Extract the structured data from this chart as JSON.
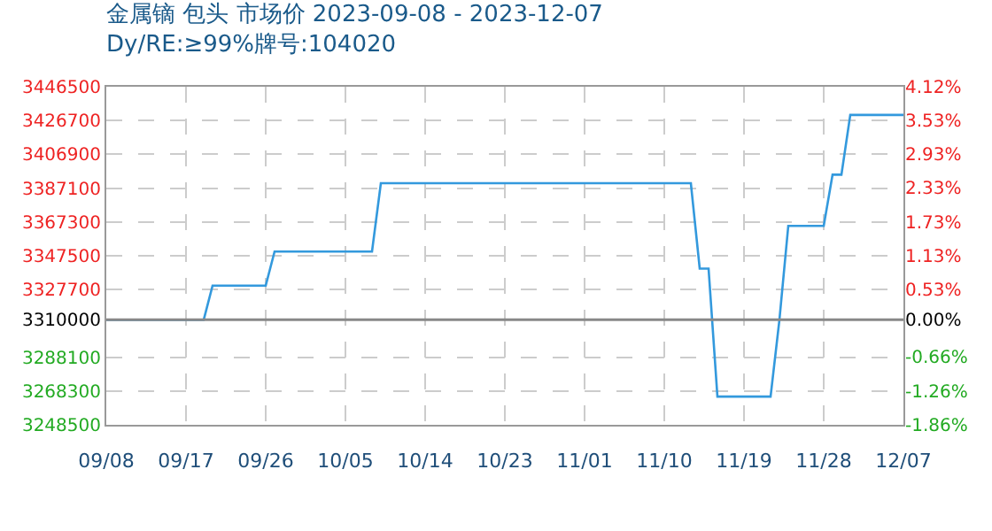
{
  "chart_data": {
    "type": "line",
    "title": "金属镝 包头 市场价 2023-09-08 - 2023-12-07",
    "subtitle": "Dy/RE:≥99%牌号:104020",
    "x": [
      "2023-09-08",
      "2023-09-19",
      "2023-09-20",
      "2023-09-26",
      "2023-09-27",
      "2023-10-08",
      "2023-10-09",
      "2023-11-13",
      "2023-11-14",
      "2023-11-15",
      "2023-11-16",
      "2023-11-22",
      "2023-11-23",
      "2023-11-24",
      "2023-11-28",
      "2023-11-29",
      "2023-11-30",
      "2023-12-01",
      "2023-12-07"
    ],
    "series": [
      {
        "color": "#3399dd",
        "values": [
          3310000,
          3310000,
          3330000,
          3330000,
          3350000,
          3350000,
          3390000,
          3390000,
          3340000,
          3340000,
          3265000,
          3265000,
          3310000,
          3365000,
          3365000,
          3395000,
          3395000,
          3430000,
          3430000
        ]
      }
    ],
    "xlim": [
      "2023-09-08",
      "2023-12-07"
    ],
    "xticks": [
      {
        "value": "2023-09-08",
        "label": "09/08"
      },
      {
        "value": "2023-09-17",
        "label": "09/17"
      },
      {
        "value": "2023-09-26",
        "label": "09/26"
      },
      {
        "value": "2023-10-05",
        "label": "10/05"
      },
      {
        "value": "2023-10-14",
        "label": "10/14"
      },
      {
        "value": "2023-10-23",
        "label": "10/23"
      },
      {
        "value": "2023-11-01",
        "label": "11/01"
      },
      {
        "value": "2023-11-10",
        "label": "11/10"
      },
      {
        "value": "2023-11-19",
        "label": "11/19"
      },
      {
        "value": "2023-11-28",
        "label": "11/28"
      },
      {
        "value": "2023-12-07",
        "label": "12/07"
      }
    ],
    "ylim": [
      3248500,
      3446500
    ],
    "yticks": [
      3446500,
      3426700,
      3406900,
      3387100,
      3367300,
      3347500,
      3327700,
      3310000,
      3288100,
      3268300,
      3248500
    ],
    "y2lim": [
      -1.86,
      4.12
    ],
    "y2ticks": [
      {
        "value": 4.12,
        "label": "4.12%"
      },
      {
        "value": 3.53,
        "label": "3.53%"
      },
      {
        "value": 2.93,
        "label": "2.93%"
      },
      {
        "value": 2.33,
        "label": "2.33%"
      },
      {
        "value": 1.73,
        "label": "1.73%"
      },
      {
        "value": 1.13,
        "label": "1.13%"
      },
      {
        "value": 0.53,
        "label": "0.53%"
      },
      {
        "value": 0,
        "label": "0.00%"
      },
      {
        "value": -0.66,
        "label": "-0.66%"
      },
      {
        "value": -1.26,
        "label": "-1.26%"
      },
      {
        "value": -1.86,
        "label": "-1.86%"
      }
    ],
    "ref_lines": [
      {
        "axis": "y",
        "value": 3310000,
        "color": "#888888"
      }
    ],
    "grid": true,
    "line_style": "solid",
    "marker": "none"
  }
}
